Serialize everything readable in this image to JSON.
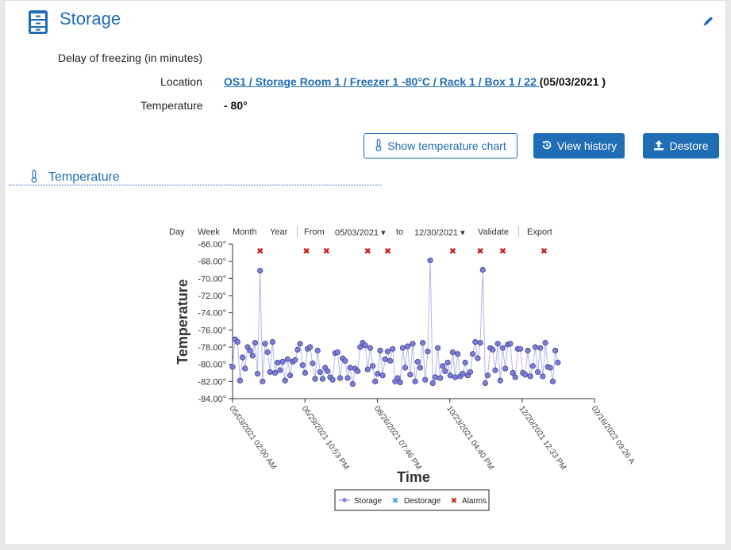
{
  "header": {
    "title": "Storage"
  },
  "details": {
    "delay_label": "Delay of freezing (in minutes)",
    "location_label": "Location",
    "location_link": "OS1 / Storage Room 1 / Freezer 1 -80°C / Rack 1 / Box 1 / 22 ",
    "location_date": "(05/03/2021 )",
    "temperature_label": "Temperature",
    "temperature_value": "- 80°"
  },
  "buttons": {
    "show_chart": "Show temperature chart",
    "view_history": "View history",
    "destore": "Destore"
  },
  "section": {
    "title": "Temperature"
  },
  "toolbar": {
    "day": "Day",
    "week": "Week",
    "month": "Month",
    "year": "Year",
    "from": "From",
    "from_value": "05/03/2021",
    "to": "to",
    "to_value": "12/30/2021",
    "validate": "Validate",
    "export": "Export"
  },
  "colors": {
    "accent": "#1f6db5",
    "storage": "#7b7fd8",
    "destorage": "#2fa9e0",
    "alarms": "#cc1a1a"
  },
  "chart_data": {
    "type": "line",
    "xlabel": "Time",
    "ylabel": "Temperature",
    "ylim": [
      -84,
      -66
    ],
    "yticks": [
      -66,
      -68,
      -70,
      -72,
      -74,
      -76,
      -78,
      -80,
      -82,
      -84
    ],
    "ytick_labels": [
      "-66.00°",
      "-68.00°",
      "-70.00°",
      "-72.00°",
      "-74.00°",
      "-76.00°",
      "-78.00°",
      "-80.00°",
      "-82.00°",
      "-84.00°"
    ],
    "xticks": [
      "05/03/2021 02:00 AM",
      "06/29/2021 10:53 PM",
      "08/26/2021 07:46 PM",
      "10/23/2021 04:40 PM",
      "12/20/2021 12:33 PM",
      "02/16/2022 09:26 A"
    ],
    "xlim_days": [
      0,
      289.3
    ],
    "xtick_days": [
      0,
      57.87,
      115.74,
      173.61,
      231.48,
      289.35
    ],
    "legend": [
      "Storage",
      "Destorage",
      "Alarms"
    ],
    "legend_position": "bottom",
    "series": [
      {
        "name": "Storage",
        "x_days": [
          0,
          2,
          4,
          6,
          8,
          10,
          12,
          14,
          16,
          18,
          20,
          22,
          24,
          26,
          28,
          30,
          32,
          34,
          36,
          38,
          40,
          42,
          44,
          46,
          48,
          50,
          52,
          54,
          56,
          58,
          60,
          62,
          64,
          66,
          68,
          70,
          72,
          74,
          76,
          78,
          80,
          82,
          84,
          86,
          88,
          90,
          92,
          94,
          96,
          98,
          100,
          102,
          104,
          106,
          108,
          110,
          112,
          114,
          116,
          118,
          120,
          122,
          124,
          126,
          128,
          130,
          132,
          134,
          136,
          138,
          140,
          142,
          144,
          146,
          148,
          150,
          152,
          154,
          156,
          158,
          160,
          162,
          164,
          166,
          168,
          170,
          172,
          174,
          176,
          178,
          180,
          182,
          184,
          186,
          188,
          190,
          192,
          194,
          196,
          198,
          200,
          202,
          204,
          206,
          208,
          210,
          212,
          214,
          216,
          218,
          220,
          222,
          224,
          226,
          228,
          230,
          232,
          234,
          236,
          238,
          240,
          242,
          244,
          246,
          248,
          250,
          252,
          254,
          256,
          258,
          260
        ],
        "values": [
          -80.3,
          -77.1,
          -77.4,
          -81.9,
          -79.2,
          -80.5,
          -78.0,
          -78.4,
          -79.0,
          -77.5,
          -81.1,
          -69.1,
          -82.0,
          -77.6,
          -78.6,
          -80.9,
          -77.4,
          -81.0,
          -79.8,
          -80.7,
          -79.7,
          -81.9,
          -79.4,
          -81.3,
          -79.7,
          -79.5,
          -78.3,
          -77.6,
          -80.1,
          -81.0,
          -78.2,
          -78.0,
          -79.9,
          -81.7,
          -78.4,
          -80.9,
          -81.7,
          -80.4,
          -80.8,
          -81.5,
          -81.8,
          -78.7,
          -78.6,
          -81.6,
          -79.3,
          -79.6,
          -81.6,
          -80.4,
          -82.3,
          -80.5,
          -80.8,
          -78.0,
          -77.5,
          -77.8,
          -80.6,
          -78.1,
          -80.2,
          -82.0,
          -81.1,
          -78.4,
          -81.3,
          -79.4,
          -78.5,
          -79.6,
          -78.2,
          -82.0,
          -81.6,
          -82.1,
          -78.1,
          -80.4,
          -77.9,
          -81.2,
          -77.6,
          -82.0,
          -79.7,
          -80.4,
          -77.5,
          -81.8,
          -78.5,
          -67.9,
          -82.2,
          -81.5,
          -78.1,
          -81.6,
          -80.2,
          -80.8,
          -79.8,
          -81.3,
          -78.6,
          -81.5,
          -78.8,
          -81.4,
          -81.1,
          -79.8,
          -81.3,
          -80.9,
          -78.8,
          -77.4,
          -79.3,
          -77.5,
          -69.0,
          -82.2,
          -81.3,
          -78.1,
          -78.3,
          -80.7,
          -77.6,
          -81.9,
          -78.1,
          -80.5,
          -77.7,
          -77.6,
          -81.0,
          -81.5,
          -78.2,
          -78.2,
          -81.0,
          -81.2,
          -78.4,
          -81.4,
          -80.2,
          -78.0,
          -80.9,
          -78.1,
          -81.4,
          -77.5,
          -80.3,
          -80.4,
          -82.0,
          -78.4,
          -79.8
        ],
        "color": "#7b7fd8"
      },
      {
        "name": "Destorage",
        "x_days": [],
        "values": [],
        "color": "#2fa9e0"
      },
      {
        "name": "Alarms",
        "x_days": [
          22,
          59,
          75,
          108,
          124,
          176,
          198,
          216,
          249
        ],
        "values": [
          -66.8,
          -66.8,
          -66.8,
          -66.8,
          -66.8,
          -66.8,
          -66.8,
          -66.8,
          -66.8
        ],
        "color": "#cc1a1a"
      }
    ]
  }
}
